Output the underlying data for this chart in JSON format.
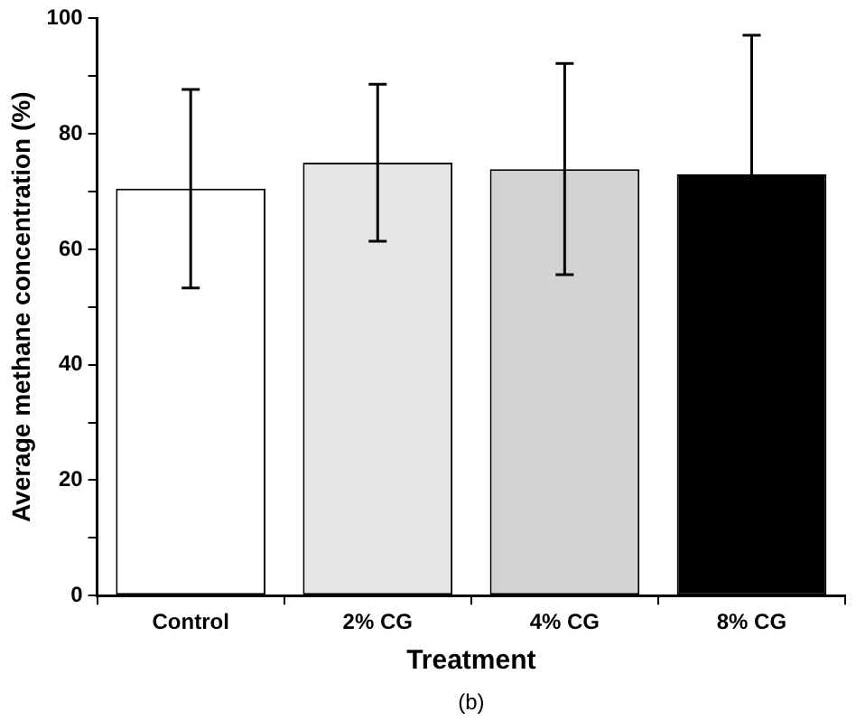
{
  "chart_data": {
    "type": "bar",
    "xlabel": "Treatment",
    "ylabel": "Average methane concentration (%)",
    "categories": [
      "Control",
      "2% CG",
      "4% CG",
      "8% CG"
    ],
    "values": [
      70.5,
      75.0,
      73.9,
      73.0
    ],
    "colors": [
      "#ffffff",
      "#e6e6e6",
      "#d3d3d3",
      "#000000"
    ],
    "errors": [
      17.2,
      13.6,
      18.3,
      24.1
    ],
    "ylim": [
      0,
      100
    ],
    "yticks": [
      0,
      {
        "value": 10,
        "label": null
      },
      20,
      {
        "value": 30,
        "label": null
      },
      40,
      {
        "value": 50,
        "label": null
      },
      60,
      {
        "value": 70,
        "label": null
      },
      80,
      {
        "value": 90,
        "label": null
      },
      100
    ],
    "grid": false,
    "legend": false,
    "annotations": [
      "(b)"
    ]
  }
}
